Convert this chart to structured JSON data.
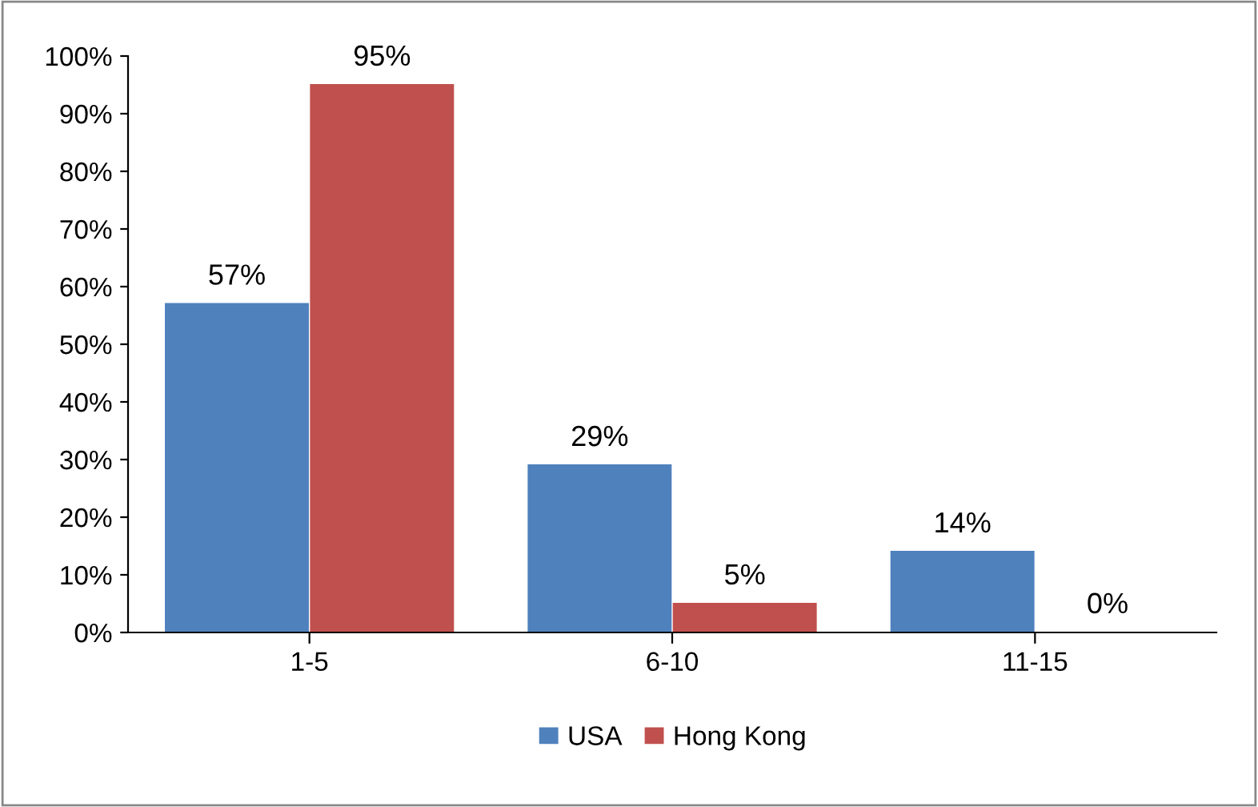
{
  "chart_data": {
    "type": "bar",
    "categories": [
      "1-5",
      "6-10",
      "11-15"
    ],
    "series": [
      {
        "name": "USA",
        "color": "#4f81bd",
        "values": [
          57,
          29,
          14
        ],
        "value_labels": [
          "57%",
          "29%",
          "14%"
        ]
      },
      {
        "name": "Hong Kong",
        "color": "#c0504d",
        "values": [
          95,
          5,
          0
        ],
        "value_labels": [
          "95%",
          "5%",
          "0%"
        ]
      }
    ],
    "ylim": [
      0,
      100
    ],
    "yticks": [
      {
        "value": 0,
        "label": "0%"
      },
      {
        "value": 10,
        "label": "10%"
      },
      {
        "value": 20,
        "label": "20%"
      },
      {
        "value": 30,
        "label": "30%"
      },
      {
        "value": 40,
        "label": "40%"
      },
      {
        "value": 50,
        "label": "50%"
      },
      {
        "value": 60,
        "label": "60%"
      },
      {
        "value": 70,
        "label": "70%"
      },
      {
        "value": 80,
        "label": "80%"
      },
      {
        "value": 90,
        "label": "90%"
      },
      {
        "value": 100,
        "label": "100%"
      }
    ],
    "grid": false,
    "legend": "bottom"
  }
}
